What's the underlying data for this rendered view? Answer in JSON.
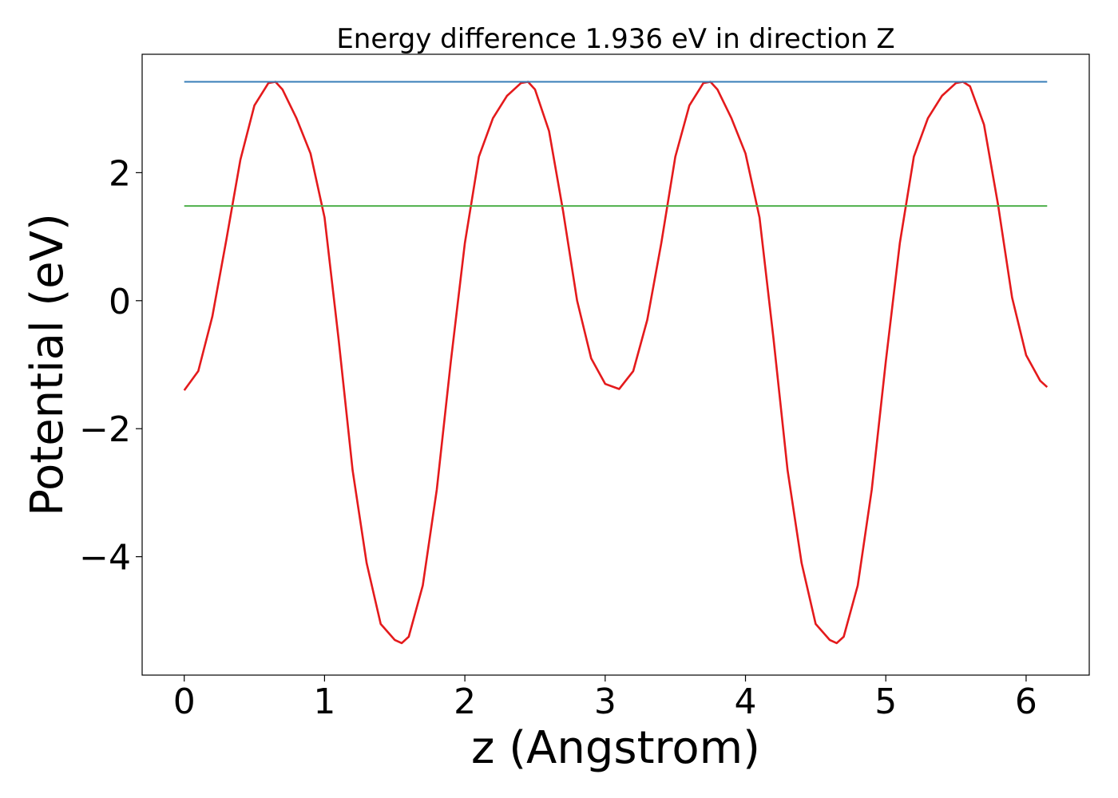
{
  "chart_data": {
    "type": "line",
    "title": "Energy difference 1.936 eV in direction Z",
    "xlabel": "z (Angstrom)",
    "ylabel": "Potential (eV)",
    "xlim": [
      -0.3,
      6.45
    ],
    "ylim": [
      -5.85,
      3.85
    ],
    "xticks": [
      0,
      1,
      2,
      3,
      4,
      5,
      6
    ],
    "xtick_labels": [
      "0",
      "1",
      "2",
      "3",
      "4",
      "5",
      "6"
    ],
    "yticks": [
      -4,
      -2,
      0,
      2
    ],
    "ytick_labels": [
      "−4",
      "−2",
      "0",
      "2"
    ],
    "grid": false,
    "series": [
      {
        "color": "#e41a1c",
        "x": [
          0.0,
          0.1,
          0.2,
          0.3,
          0.4,
          0.5,
          0.6,
          0.65,
          0.7,
          0.8,
          0.9,
          1.0,
          1.1,
          1.2,
          1.3,
          1.4,
          1.5,
          1.55,
          1.6,
          1.7,
          1.8,
          1.9,
          2.0,
          2.1,
          2.2,
          2.3,
          2.4,
          2.45,
          2.5,
          2.6,
          2.7,
          2.8,
          2.9,
          3.0,
          3.1,
          3.2,
          3.3,
          3.4,
          3.5,
          3.6,
          3.7,
          3.75,
          3.8,
          3.9,
          4.0,
          4.1,
          4.2,
          4.3,
          4.4,
          4.5,
          4.6,
          4.65,
          4.7,
          4.8,
          4.9,
          5.0,
          5.1,
          5.2,
          5.3,
          5.4,
          5.5,
          5.55,
          5.6,
          5.7,
          5.8,
          5.9,
          6.0,
          6.1,
          6.15
        ],
        "y": [
          -1.4,
          -1.1,
          -0.25,
          0.95,
          2.2,
          3.05,
          3.4,
          3.42,
          3.3,
          2.85,
          2.3,
          1.3,
          -0.6,
          -2.65,
          -4.1,
          -5.05,
          -5.3,
          -5.35,
          -5.25,
          -4.45,
          -2.95,
          -0.95,
          0.9,
          2.25,
          2.85,
          3.2,
          3.4,
          3.42,
          3.3,
          2.65,
          1.4,
          0.0,
          -0.9,
          -1.3,
          -1.38,
          -1.1,
          -0.3,
          0.9,
          2.25,
          3.05,
          3.4,
          3.42,
          3.3,
          2.85,
          2.3,
          1.3,
          -0.6,
          -2.65,
          -4.1,
          -5.05,
          -5.3,
          -5.35,
          -5.25,
          -4.45,
          -2.95,
          -0.95,
          0.9,
          2.25,
          2.85,
          3.2,
          3.4,
          3.42,
          3.35,
          2.75,
          1.5,
          0.05,
          -0.85,
          -1.25,
          -1.35
        ]
      },
      {
        "color": "#377eb8",
        "x": [
          0.0,
          6.15
        ],
        "y": [
          3.42,
          3.42
        ]
      },
      {
        "color": "#4daf4a",
        "x": [
          0.0,
          6.15
        ],
        "y": [
          1.48,
          1.48
        ]
      }
    ]
  }
}
